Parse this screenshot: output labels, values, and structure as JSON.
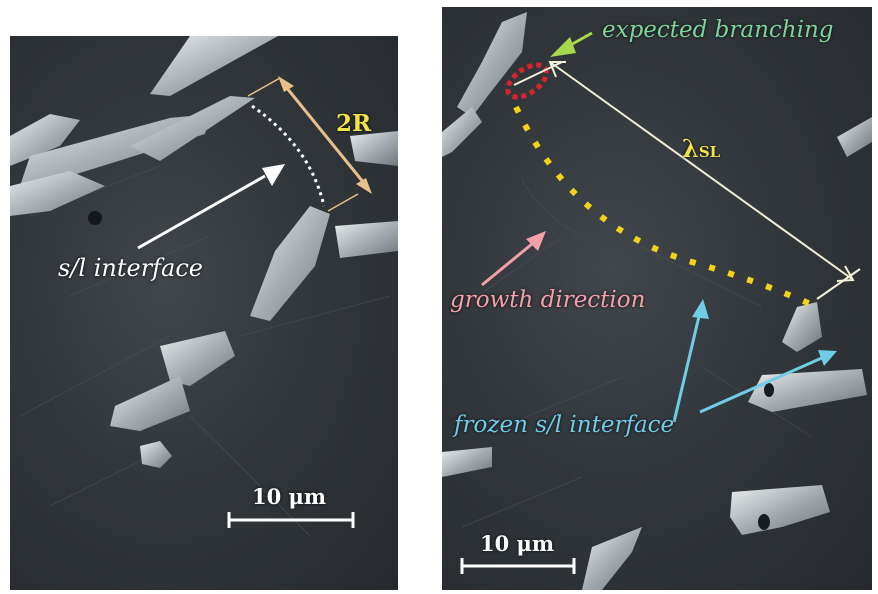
{
  "left_panel": {
    "annotation_interface": "s/l interface",
    "annotation_radius": "2R",
    "scale_bar": "10 μm"
  },
  "right_panel": {
    "annotation_branching": "expected branching",
    "annotation_spacing_symbol": "λ",
    "annotation_spacing_subscript": "SL",
    "annotation_growth": "growth direction",
    "annotation_frozen": "frozen s/l interface",
    "scale_bar": "10 μm"
  },
  "colors": {
    "interface_label": "#ffffff",
    "radius_label": "#f2e24a",
    "radius_arrow": "#e8c08a",
    "branching_label": "#7fd39b",
    "branching_arrow": "#a8d84a",
    "branching_marker": "#d8232a",
    "spacing_label": "#f2e24a",
    "growth_label": "#f3a0a8",
    "frozen_label": "#6fcde6",
    "dotted_curve_right": "#f2d21a",
    "dotted_curve_left": "#ffffff"
  }
}
